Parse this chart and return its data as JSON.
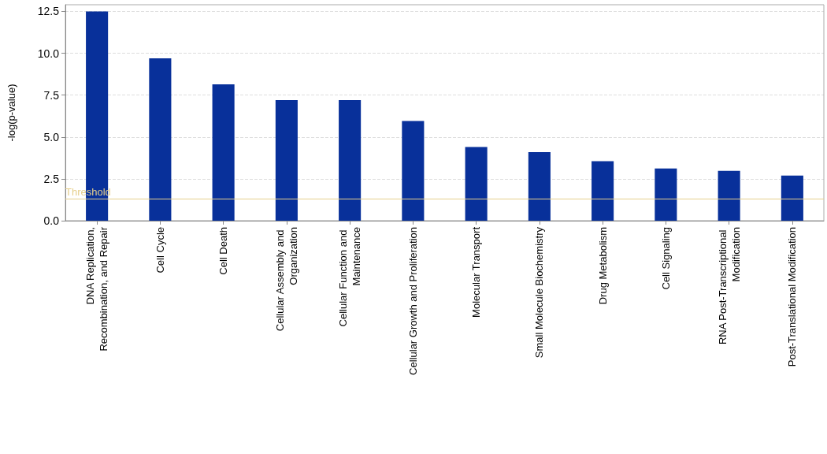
{
  "chart_data": {
    "type": "bar",
    "ylabel": "-log(p-value)",
    "categories": [
      "DNA Replication,\nRecombination, and Repair",
      "Cell Cycle",
      "Cell Death",
      "Cellular Assembly and Organization",
      "Cellular Function and Maintenance",
      "Cellular Growth and Proliferation",
      "Molecular Transport",
      "Small Molecule Biochemistry",
      "Drug Metabolism",
      "Cell Signaling",
      "RNA Post-Transcriptional Modification",
      "Post-Translational Modification"
    ],
    "values": [
      12.5,
      9.7,
      8.15,
      7.2,
      7.2,
      5.95,
      4.4,
      4.1,
      3.55,
      3.12,
      2.98,
      2.7
    ],
    "color": "#08309a",
    "ylim": [
      0,
      12.9
    ],
    "yticks": [
      {
        "value": 0,
        "label": "0.0"
      },
      2.5,
      {
        "value": 5,
        "label": "5.0"
      },
      7.5,
      {
        "value": 10,
        "label": "10.0"
      },
      12.5
    ],
    "grid": "y",
    "ref_lines": [
      {
        "axis": "y",
        "value": 1.3,
        "label": "Threshold",
        "color": "#e6cf8c"
      }
    ]
  }
}
